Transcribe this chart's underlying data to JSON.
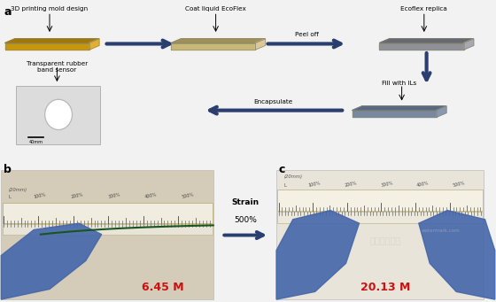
{
  "bg_color": "#f2f2f2",
  "title_a": "a",
  "title_b": "b",
  "title_c": "c",
  "step_labels": [
    "3D printing mold design",
    "Coat liquid EcoFlex",
    "Ecoflex replica",
    "Transparent rubber\nband sensor",
    "Encapsulate",
    "Fill with ILs"
  ],
  "peel_off": "Peel off",
  "fill_ils": "Fill with ILs",
  "encapsulate": "Encapsulate",
  "strain_label1": "Strain",
  "strain_label2": "500%",
  "value_b": "6.45 M",
  "value_c": "20.13 M",
  "mold_colors": [
    "#c8960a",
    "#a07808",
    "#e0b030"
  ],
  "ecoflex_colors": [
    "#c8b878",
    "#a09058",
    "#dcc898"
  ],
  "replica_colors": [
    "#909098",
    "#686870",
    "#a8a8b0"
  ],
  "filled_colors": [
    "#7888a0",
    "#586880",
    "#8898b0"
  ],
  "arrow_color": "#2a3f6f",
  "glove_color_b": "#4466aa",
  "glove_color_c": "#4466aa",
  "ruler_bg_b": "#d4cbb8",
  "ruler_bg_c": "#e8e4da",
  "sensor_line_color": "#1a5520",
  "red_text_color": "#cc1111",
  "scale_bar": "40mm",
  "pct_labels": [
    "100%",
    "200%",
    "300%",
    "400%",
    "500%"
  ]
}
